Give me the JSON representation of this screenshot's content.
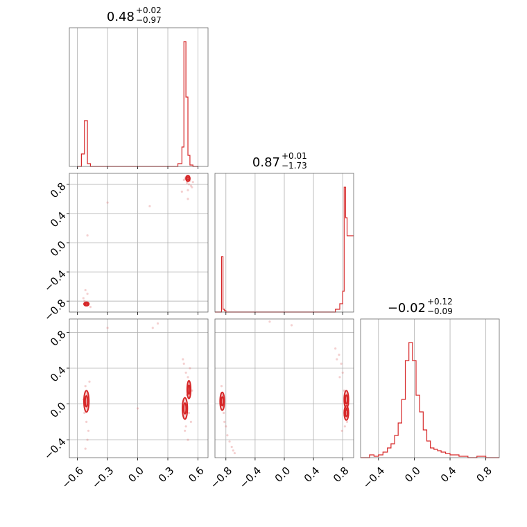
{
  "chart_data": {
    "type": "corner",
    "color": "#d62728",
    "titles": [
      {
        "value": "0.48",
        "plus": "+0.02",
        "minus": "−0.97"
      },
      {
        "value": "0.87",
        "plus": "+0.01",
        "minus": "−1.73"
      },
      {
        "value": "−0.02",
        "plus": "+0.12",
        "minus": "−0.09"
      }
    ],
    "axes": [
      {
        "range": [
          -0.68,
          0.7
        ],
        "ticks": [
          -0.6,
          -0.3,
          0.0,
          0.3,
          0.6
        ],
        "tick_labels": [
          "−0.6",
          "−0.3",
          "0.0",
          "0.3",
          "0.6"
        ]
      },
      {
        "range": [
          -0.95,
          0.95
        ],
        "ticks": [
          -0.8,
          -0.4,
          0.0,
          0.4,
          0.8
        ],
        "tick_labels": [
          "−0.8",
          "−0.4",
          "0.0",
          "0.4",
          "0.8"
        ]
      },
      {
        "range": [
          -0.6,
          0.95
        ],
        "ticks": [
          -0.4,
          0.0,
          0.4,
          0.8
        ],
        "tick_labels": [
          "−0.4",
          "0.0",
          "0.4",
          "0.8"
        ]
      }
    ],
    "hist1d": [
      {
        "bins": [
          -0.6,
          -0.56,
          -0.53,
          -0.5,
          -0.47,
          -0.44,
          0.4,
          0.44,
          0.46,
          0.48,
          0.5,
          0.52,
          0.55,
          0.6
        ],
        "counts": [
          0.0,
          0.09,
          0.33,
          0.02,
          0.0,
          0.0,
          0.02,
          0.14,
          0.9,
          0.5,
          0.08,
          0.01,
          0.0
        ]
      },
      {
        "bins": [
          -0.95,
          -0.88,
          -0.86,
          -0.84,
          -0.82,
          -0.8,
          -0.7,
          0.7,
          0.76,
          0.8,
          0.82,
          0.84,
          0.86,
          0.88,
          0.95
        ],
        "counts": [
          0.0,
          0.0,
          0.4,
          0.02,
          0.01,
          0.0,
          0.0,
          0.02,
          0.06,
          0.15,
          0.9,
          0.68,
          0.55,
          0.55
        ]
      },
      {
        "bins": [
          -0.6,
          -0.5,
          -0.45,
          -0.4,
          -0.35,
          -0.3,
          -0.26,
          -0.22,
          -0.18,
          -0.14,
          -0.1,
          -0.06,
          -0.02,
          0.02,
          0.06,
          0.1,
          0.14,
          0.18,
          0.22,
          0.26,
          0.3,
          0.35,
          0.4,
          0.5,
          0.6,
          0.7,
          0.8,
          0.95
        ],
        "counts": [
          0.0,
          0.02,
          0.01,
          0.02,
          0.04,
          0.07,
          0.1,
          0.16,
          0.25,
          0.42,
          0.7,
          0.83,
          0.7,
          0.45,
          0.33,
          0.2,
          0.12,
          0.07,
          0.06,
          0.05,
          0.04,
          0.03,
          0.02,
          0.01,
          0.0,
          0.01,
          0.0
        ]
      }
    ],
    "scatter": [
      {
        "x_axis": 0,
        "y_axis": 1,
        "x": [
          0.48,
          0.5,
          0.52,
          0.49,
          0.51,
          0.53,
          0.47,
          0.54,
          0.5,
          0.46,
          0.55,
          0.44,
          -0.52,
          -0.5,
          -0.53,
          -0.51,
          -0.49,
          -0.54,
          -0.5,
          -0.47,
          -0.52,
          -0.3,
          0.12,
          -0.5,
          0.5
        ],
        "y": [
          0.9,
          0.87,
          0.85,
          0.82,
          0.8,
          0.78,
          0.88,
          0.76,
          0.72,
          0.86,
          0.83,
          0.7,
          -0.85,
          -0.82,
          -0.8,
          -0.86,
          -0.83,
          -0.76,
          -0.7,
          -0.88,
          -0.65,
          0.55,
          0.5,
          0.1,
          0.6
        ],
        "contours": [
          {
            "cx": 0.5,
            "cy": 0.88,
            "rx": 0.02,
            "ry": 0.04
          },
          {
            "cx": -0.51,
            "cy": -0.84,
            "rx": 0.025,
            "ry": 0.025
          }
        ]
      },
      {
        "x_axis": 0,
        "y_axis": 2,
        "x": [
          -0.52,
          -0.5,
          -0.53,
          -0.51,
          -0.49,
          -0.5,
          -0.52,
          -0.48,
          -0.54,
          0.46,
          0.48,
          0.5,
          0.52,
          0.49,
          0.51,
          0.53,
          0.47,
          0.5,
          0.52,
          0.45,
          0.0,
          0.15,
          -0.3,
          0.2,
          0.5,
          0.48,
          0.54
        ],
        "y": [
          0.2,
          0.1,
          -0.1,
          -0.2,
          -0.3,
          -0.4,
          -0.5,
          0.25,
          0.05,
          0.45,
          0.35,
          0.3,
          0.2,
          0.1,
          -0.1,
          -0.2,
          -0.3,
          -0.4,
          0.4,
          0.5,
          -0.05,
          0.85,
          0.85,
          0.9,
          0.2,
          -0.25,
          0.15
        ],
        "contours": [
          {
            "cx": -0.51,
            "cy": 0.03,
            "rx": 0.025,
            "ry": 0.12
          },
          {
            "cx": 0.47,
            "cy": -0.05,
            "rx": 0.025,
            "ry": 0.12
          },
          {
            "cx": 0.51,
            "cy": 0.16,
            "rx": 0.018,
            "ry": 0.1
          }
        ]
      },
      {
        "x_axis": 1,
        "y_axis": 2,
        "x": [
          -0.85,
          -0.83,
          -0.8,
          -0.78,
          -0.75,
          -0.72,
          -0.7,
          -0.68,
          -0.86,
          -0.82,
          0.75,
          0.78,
          0.8,
          0.82,
          0.84,
          0.86,
          0.88,
          0.7,
          0.72,
          0.76,
          0.79,
          0.83,
          -0.2,
          0.1
        ],
        "y": [
          0.1,
          -0.1,
          -0.25,
          -0.35,
          -0.42,
          -0.48,
          -0.52,
          -0.55,
          0.2,
          -0.2,
          0.55,
          0.45,
          0.35,
          0.15,
          -0.1,
          -0.2,
          0.0,
          0.62,
          0.5,
          0.3,
          -0.3,
          -0.25,
          0.92,
          0.88
        ],
        "contours": [
          {
            "cx": -0.85,
            "cy": 0.03,
            "rx": 0.03,
            "ry": 0.1
          },
          {
            "cx": 0.85,
            "cy": 0.05,
            "rx": 0.03,
            "ry": 0.1
          },
          {
            "cx": 0.85,
            "cy": -0.1,
            "rx": 0.03,
            "ry": 0.08
          }
        ]
      }
    ],
    "grid": true
  }
}
